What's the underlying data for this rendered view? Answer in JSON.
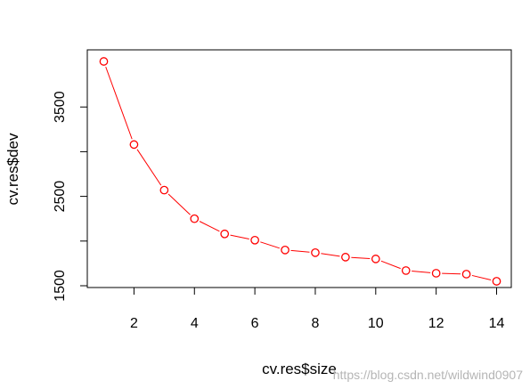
{
  "chart_data": {
    "type": "line",
    "xlabel": "cv.res$size",
    "ylabel": "cv.res$dev",
    "x": [
      1,
      2,
      3,
      4,
      5,
      6,
      7,
      8,
      9,
      10,
      11,
      12,
      13,
      14
    ],
    "series": [
      {
        "values": [
          4010,
          3080,
          2570,
          2250,
          2080,
          2010,
          1900,
          1870,
          1820,
          1800,
          1670,
          1640,
          1630,
          1550
        ],
        "color": "#ff0000",
        "marker": "open-circle",
        "line": "solid"
      }
    ],
    "xticks": [
      2,
      4,
      6,
      8,
      10,
      12,
      14
    ],
    "xtick_labels": [
      "2",
      "4",
      "6",
      "8",
      "10",
      "12",
      "14"
    ],
    "yticks": [
      1500,
      2000,
      2500,
      3000,
      3500
    ],
    "ytick_labels": [
      "1500",
      "",
      "2500",
      "",
      "3500"
    ],
    "xlim": [
      0.5,
      14.5
    ],
    "ylim": [
      1500,
      4100
    ],
    "grid": false,
    "legend": "none",
    "box": true
  },
  "watermark": "https://blog.csdn.net/wildwind0907"
}
